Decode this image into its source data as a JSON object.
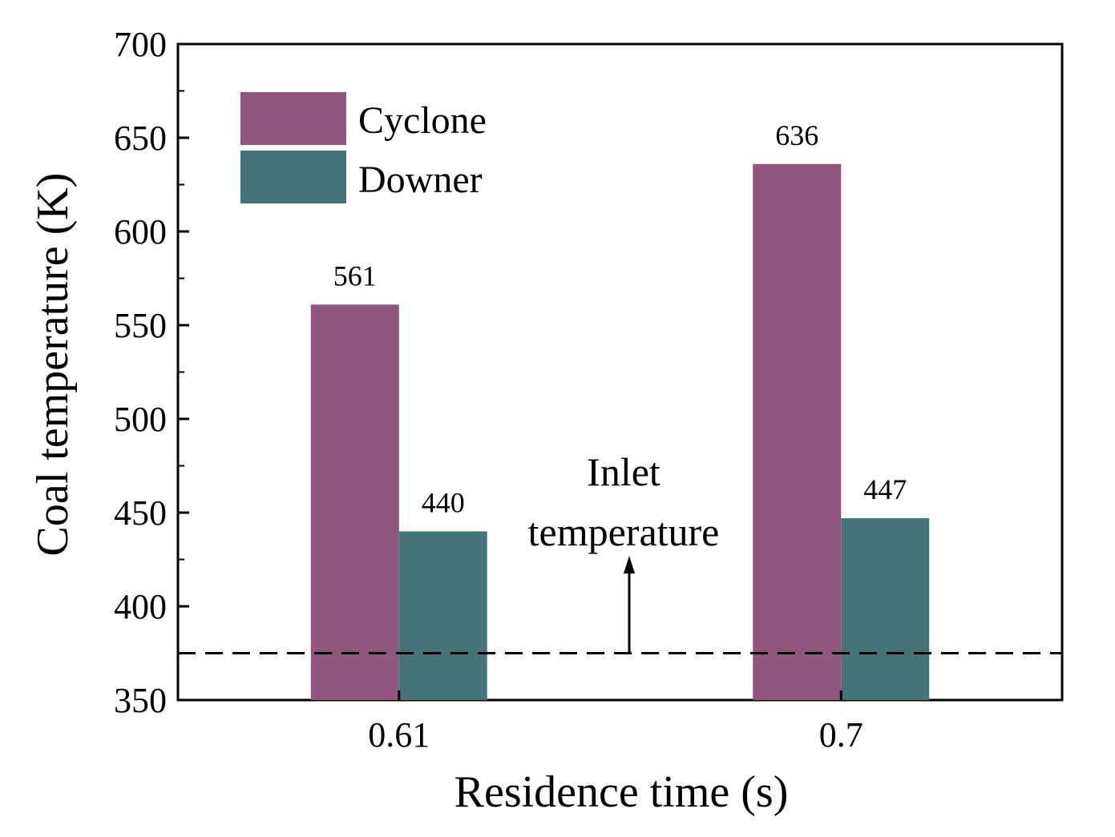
{
  "chart_data": {
    "type": "bar",
    "categories": [
      "0.61",
      "0.7"
    ],
    "series": [
      {
        "name": "Cyclone",
        "values": [
          561,
          636
        ],
        "color": "#8e577b"
      },
      {
        "name": "Downer",
        "values": [
          440,
          447
        ],
        "color": "#457478"
      }
    ],
    "data_labels": [
      [
        "561",
        "636"
      ],
      [
        "440",
        "447"
      ]
    ],
    "xlabel": "Residence time (s)",
    "ylabel": "Coal temperature (K)",
    "ylim": [
      350,
      700
    ],
    "yticks": [
      350,
      400,
      450,
      500,
      550,
      600,
      650,
      700
    ],
    "ytick_labels": [
      "350",
      "400",
      "450",
      "500",
      "550",
      "600",
      "650",
      "700"
    ],
    "grid": false,
    "legend_position": "top-left",
    "reference_line": {
      "y": 375,
      "style": "dashed"
    },
    "annotation": {
      "lines": [
        "Inlet",
        "temperature"
      ],
      "arrow": "up"
    }
  }
}
